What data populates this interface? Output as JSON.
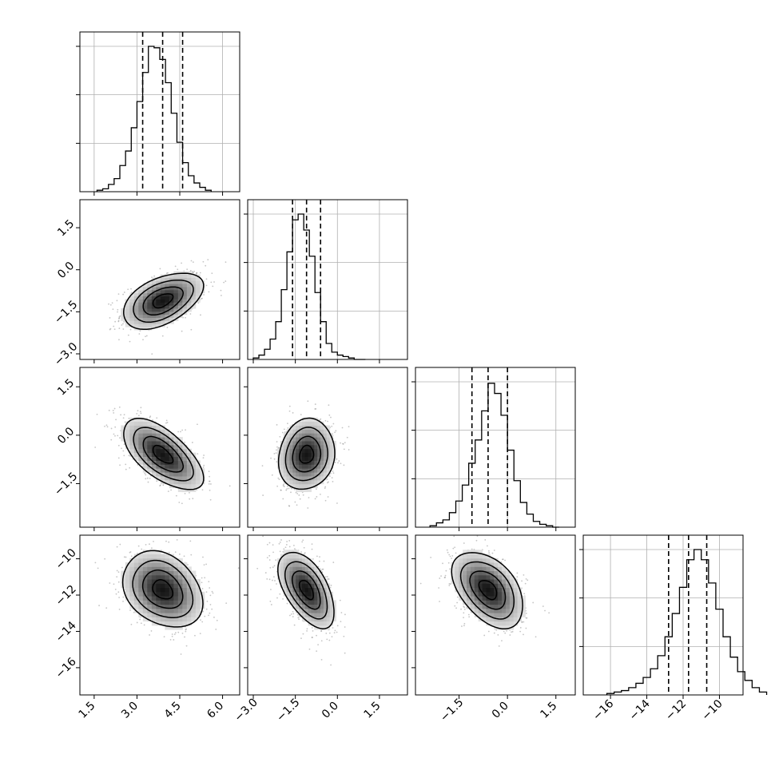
{
  "chart_data": {
    "type": "corner",
    "parameters": [
      {
        "range": [
          1.0,
          6.6
        ],
        "ticks": [
          1.5,
          3.0,
          4.5,
          6.0
        ],
        "tick_labels": [
          "1.5",
          "3.0",
          "4.5",
          "6.0"
        ],
        "quantiles": [
          3.2,
          3.9,
          4.6
        ],
        "histogram": {
          "start": 1.6,
          "bin_width": 0.2,
          "counts": [
            1,
            2,
            5,
            9,
            18,
            28,
            44,
            62,
            82,
            100,
            99,
            91,
            75,
            54,
            34,
            20,
            11,
            6,
            3,
            1
          ]
        }
      },
      {
        "range": [
          -3.2,
          2.5
        ],
        "ticks": [
          -3.0,
          -1.5,
          0.0,
          1.5
        ],
        "tick_labels": [
          "−3.0",
          "−1.5",
          "0.0",
          "1.5"
        ],
        "quantiles": [
          -1.6,
          -1.1,
          -0.6
        ],
        "histogram": {
          "start": -3.0,
          "bin_width": 0.2,
          "counts": [
            1,
            3,
            7,
            14,
            26,
            48,
            74,
            96,
            100,
            89,
            71,
            46,
            26,
            11,
            5,
            3,
            2,
            1,
            0,
            0
          ]
        }
      },
      {
        "range": [
          -2.85,
          2.1
        ],
        "ticks": [
          -1.5,
          0.0,
          1.5
        ],
        "tick_labels": [
          "−1.5",
          "0.0",
          "1.5"
        ],
        "quantiles": [
          -1.1,
          -0.6,
          0.0
        ],
        "histogram": {
          "start": -2.4,
          "bin_width": 0.2,
          "counts": [
            1,
            3,
            5,
            10,
            18,
            29,
            44,
            60,
            80,
            99,
            92,
            77,
            53,
            32,
            17,
            9,
            4,
            2,
            1,
            0
          ]
        }
      },
      {
        "range": [
          -17.5,
          -8.7
        ],
        "ticks": [
          -16,
          -14,
          -12,
          -10
        ],
        "tick_labels": [
          "−16",
          "−14",
          "−12",
          "−10"
        ],
        "quantiles": [
          -12.8,
          -11.7,
          -10.7
        ],
        "histogram": {
          "start": -16.2,
          "bin_width": 0.4,
          "counts": [
            1,
            2,
            3,
            5,
            8,
            12,
            18,
            27,
            40,
            56,
            74,
            93,
            100,
            93,
            77,
            59,
            40,
            26,
            16,
            10,
            5,
            2
          ]
        }
      }
    ],
    "correlations": [
      {
        "x": 0,
        "y": 1,
        "rho": 0.48
      },
      {
        "x": 0,
        "y": 2,
        "rho": -0.63
      },
      {
        "x": 1,
        "y": 2,
        "rho": 0.12
      },
      {
        "x": 0,
        "y": 3,
        "rho": -0.28
      },
      {
        "x": 1,
        "y": 3,
        "rho": -0.55
      },
      {
        "x": 2,
        "y": 3,
        "rho": -0.45
      }
    ],
    "contour_levels": [
      0.5,
      1.0,
      1.5,
      2.0
    ],
    "grid": true,
    "quantile_lines": "dashed"
  }
}
